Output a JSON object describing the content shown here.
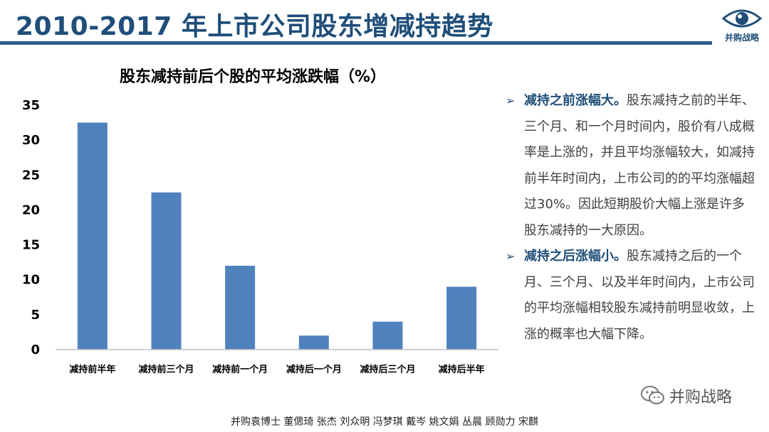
{
  "header": {
    "title": "2010-2017 年上市公司股东增减持趋势",
    "logo_text": "并购战略"
  },
  "chart_data": {
    "type": "bar",
    "title": "股东减持前后个股的平均涨跌幅（%）",
    "categories": [
      "减持前半年",
      "减持前三个月",
      "减持前一个月",
      "减持后一个月",
      "减持后三个月",
      "减持后半年"
    ],
    "values": [
      32.5,
      22.5,
      12,
      2,
      4,
      9
    ],
    "ylim": [
      0,
      35
    ],
    "yticks": [
      "0",
      "5",
      "10",
      "15",
      "20",
      "25",
      "30",
      "35"
    ],
    "grid": false,
    "legend": "none",
    "bar_color": "#4f81bd"
  },
  "bullets": [
    {
      "head": "减持之前涨幅大。",
      "body": "股东减持之前的半年、三个月、和一个月时间内，股价有八成概率是上涨的，并且平均涨幅较大，如减持前半年时间内，上市公司的的平均涨幅超过30%。因此短期股价大幅上涨是许多股东减持的一大原因。"
    },
    {
      "head": "减持之后涨幅小。",
      "body": "股东减持之后的一个月、三个月、以及半年时间内，上市公司的平均涨幅相较股东减持前明显收敛，上涨的概率也大幅下降。"
    }
  ],
  "wechat": {
    "label": "并购战略"
  },
  "footer": {
    "authors": "并购袁博士 董偲琦 张杰 刘众明 冯梦琪 戴岑 姚文娟  丛晨 顾勋力 宋麒"
  },
  "colors": {
    "title": "#1f4e79",
    "rule": "#2e5c8a",
    "bar": "#4f81bd"
  }
}
